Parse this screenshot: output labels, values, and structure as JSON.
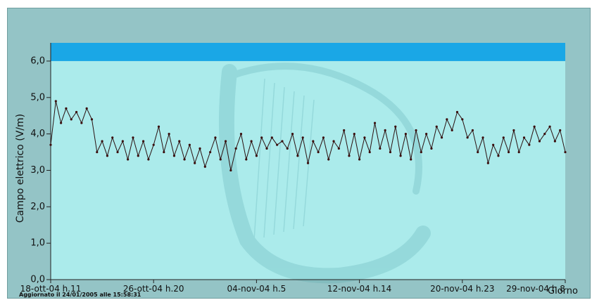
{
  "chart_data": {
    "type": "line",
    "ylabel": "Campo elettrico (V/m)",
    "xlabel": "Giorno",
    "ylim": [
      0,
      6.5
    ],
    "yticks": [
      {
        "value": 0,
        "label": "0,0"
      },
      {
        "value": 1,
        "label": "1,0"
      },
      {
        "value": 2,
        "label": "2,0"
      },
      {
        "value": 3,
        "label": "3,0"
      },
      {
        "value": 4,
        "label": "4,0"
      },
      {
        "value": 5,
        "label": "5,0"
      },
      {
        "value": 6,
        "label": "6,0"
      }
    ],
    "xlim": [
      0,
      100
    ],
    "xticks": [
      {
        "value": 0,
        "label": "18-ott-04 h.11"
      },
      {
        "value": 20,
        "label": "26-ott-04 h.20"
      },
      {
        "value": 40,
        "label": "04-nov-04 h.5"
      },
      {
        "value": 60,
        "label": "12-nov-04 h.14"
      },
      {
        "value": 80,
        "label": "20-nov-04 h.23"
      },
      {
        "value": 100,
        "label": "29-nov-04 h.8"
      }
    ],
    "limit_band": {
      "from": 6.0,
      "to": 6.5,
      "color": "#1aa7e6"
    },
    "series": [
      {
        "color": "#2a1010",
        "x": [
          0,
          1,
          2,
          3,
          4,
          5,
          6,
          7,
          8,
          9,
          10,
          11,
          12,
          13,
          14,
          15,
          16,
          17,
          18,
          19,
          20,
          21,
          22,
          23,
          24,
          25,
          26,
          27,
          28,
          29,
          30,
          31,
          32,
          33,
          34,
          35,
          36,
          37,
          38,
          39,
          40,
          41,
          42,
          43,
          44,
          45,
          46,
          47,
          48,
          49,
          50,
          51,
          52,
          53,
          54,
          55,
          56,
          57,
          58,
          59,
          60,
          61,
          62,
          63,
          64,
          65,
          66,
          67,
          68,
          69,
          70,
          71,
          72,
          73,
          74,
          75,
          76,
          77,
          78,
          79,
          80,
          81,
          82,
          83,
          84,
          85,
          86,
          87,
          88,
          89,
          90,
          91,
          92,
          93,
          94,
          95,
          96,
          97,
          98,
          99,
          100
        ],
        "y": [
          3.7,
          4.9,
          4.3,
          4.7,
          4.4,
          4.6,
          4.3,
          4.7,
          4.4,
          3.5,
          3.8,
          3.4,
          3.9,
          3.5,
          3.8,
          3.3,
          3.9,
          3.4,
          3.8,
          3.3,
          3.7,
          4.2,
          3.5,
          4.0,
          3.4,
          3.8,
          3.3,
          3.7,
          3.2,
          3.6,
          3.1,
          3.5,
          3.9,
          3.3,
          3.8,
          3.0,
          3.6,
          4.0,
          3.3,
          3.8,
          3.4,
          3.9,
          3.6,
          3.9,
          3.7,
          3.8,
          3.6,
          4.0,
          3.4,
          3.9,
          3.2,
          3.8,
          3.5,
          3.9,
          3.3,
          3.8,
          3.6,
          4.1,
          3.4,
          4.0,
          3.3,
          3.9,
          3.5,
          4.3,
          3.6,
          4.1,
          3.5,
          4.2,
          3.4,
          4.0,
          3.3,
          4.1,
          3.5,
          4.0,
          3.6,
          4.2,
          3.9,
          4.4,
          4.1,
          4.6,
          4.4,
          3.9,
          4.1,
          3.5,
          3.9,
          3.2,
          3.7,
          3.4,
          3.9,
          3.5,
          4.1,
          3.5,
          3.9,
          3.7,
          4.2,
          3.8,
          4.0,
          4.2,
          3.8,
          4.1,
          3.5
        ]
      }
    ]
  },
  "footer": "Aggiornato il 24/01/2005 alle 15:58:31"
}
